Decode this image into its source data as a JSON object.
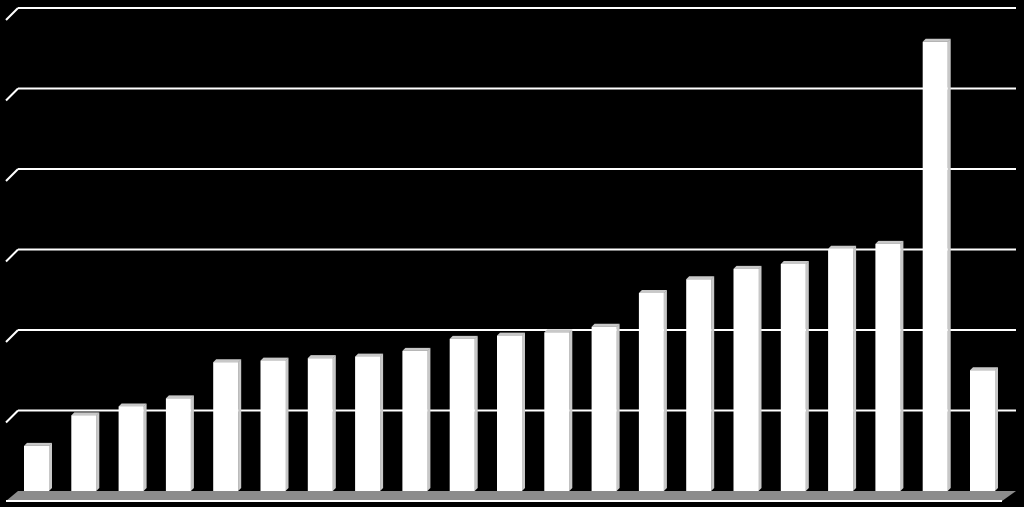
{
  "chart_data": {
    "type": "bar",
    "categories": [
      "",
      "",
      "",
      "",
      "",
      "",
      "",
      "",
      "",
      "",
      "",
      "",
      "",
      "",
      "",
      "",
      "",
      "",
      "",
      "",
      ""
    ],
    "values": [
      0.56,
      0.94,
      1.05,
      1.15,
      1.6,
      1.62,
      1.65,
      1.67,
      1.74,
      1.89,
      1.93,
      1.97,
      2.04,
      2.46,
      2.63,
      2.76,
      2.82,
      3.01,
      3.07,
      5.58,
      1.5
    ],
    "ylim": [
      0,
      6
    ],
    "grid": true,
    "colors": {
      "background": "#000000",
      "bar": "#ffffff",
      "bar_side": "#c8c8c8",
      "gridline": "#ffffff",
      "floor": "#8c8c8c"
    }
  }
}
